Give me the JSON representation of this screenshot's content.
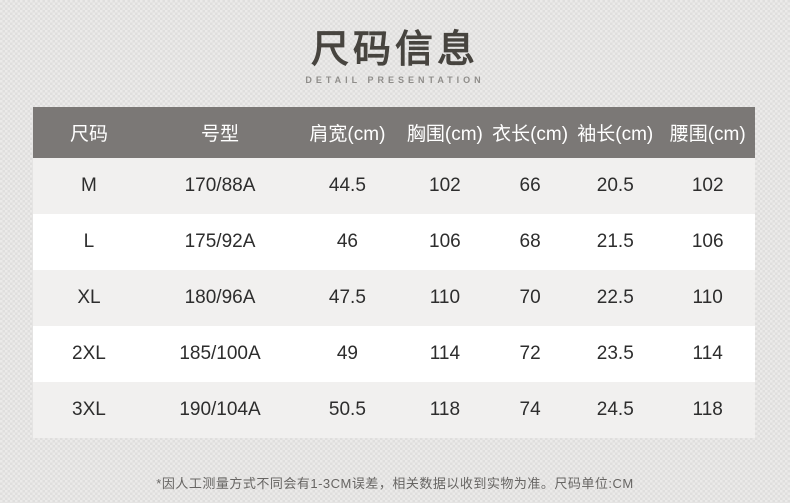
{
  "page": {
    "title": "尺码信息",
    "subtitle": "DETAIL PRESENTATION",
    "footnote": "*因人工测量方式不同会有1-3CM误差，相关数据以收到实物为准。尺码单位:CM"
  },
  "size_table": {
    "columns": [
      "尺码",
      "号型",
      "肩宽(cm)",
      "胸围(cm)",
      "衣长(cm)",
      "袖长(cm)",
      "腰围(cm)"
    ],
    "rows": [
      [
        "M",
        "170/88A",
        "44.5",
        "102",
        "66",
        "20.5",
        "102"
      ],
      [
        "L",
        "175/92A",
        "46",
        "106",
        "68",
        "21.5",
        "106"
      ],
      [
        "XL",
        "180/96A",
        "47.5",
        "110",
        "70",
        "22.5",
        "110"
      ],
      [
        "2XL",
        "185/100A",
        "49",
        "114",
        "72",
        "23.5",
        "114"
      ],
      [
        "3XL",
        "190/104A",
        "50.5",
        "118",
        "74",
        "24.5",
        "118"
      ]
    ]
  },
  "colors": {
    "page_bg": "#ebeae9",
    "page_bg_check": "#dfdedd",
    "title_text": "#47443f",
    "subtitle_text": "#8f8d8a",
    "header_bg": "#7b7876",
    "header_text": "#ffffff",
    "row_bg": "#ffffff",
    "row_alt_bg": "#f1f0ef",
    "cell_text": "#2d2d2d",
    "footnote_text": "#676563"
  }
}
